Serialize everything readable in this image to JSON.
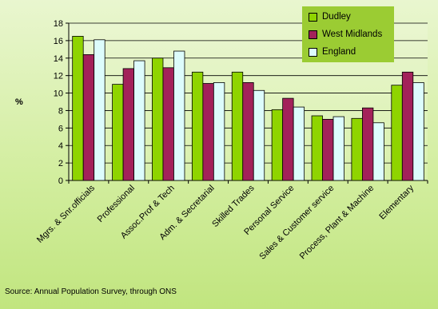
{
  "chart_data": {
    "type": "bar",
    "title": "",
    "xlabel": "",
    "ylabel": "%",
    "ylim": [
      0,
      18
    ],
    "yticks": [
      0,
      2,
      4,
      6,
      8,
      10,
      12,
      14,
      16,
      18
    ],
    "grid": true,
    "legend_position": "top-right",
    "categories": [
      "Mgrs. & Snr.officials",
      "Professional",
      "Assoc.Prof & Tech",
      "Adm. & Secretarial",
      "Skilled Trades",
      "Personal Service",
      "Sales & Customer service",
      "Process, Plant & Machine",
      "Elementary"
    ],
    "series": [
      {
        "name": "Dudley",
        "color": "#8fd400",
        "values": [
          16.5,
          11.0,
          14.0,
          12.4,
          12.4,
          8.1,
          7.4,
          7.1,
          10.9
        ]
      },
      {
        "name": "West Midlands",
        "color": "#a3215a",
        "values": [
          14.4,
          12.8,
          12.9,
          11.1,
          11.2,
          9.4,
          7.0,
          8.3,
          12.4
        ]
      },
      {
        "name": "England",
        "color": "#ddfcfc",
        "values": [
          16.1,
          13.7,
          14.8,
          11.2,
          10.3,
          8.4,
          7.3,
          6.6,
          11.2
        ]
      }
    ],
    "source": "Source: Annual Population Survey, through ONS"
  }
}
